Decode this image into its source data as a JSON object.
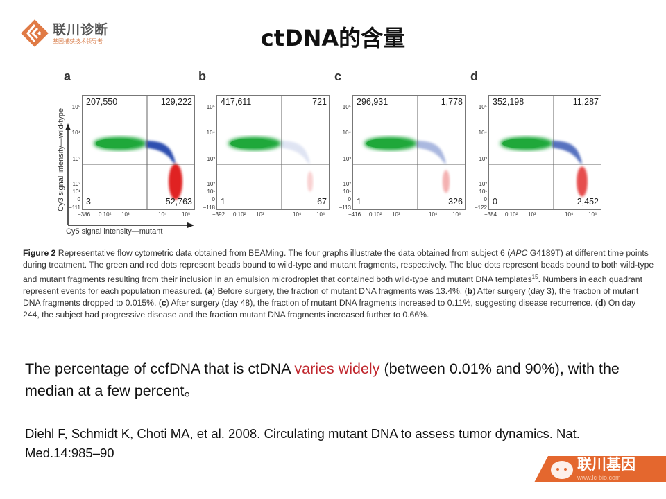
{
  "logo": {
    "name": "联川诊断",
    "tagline": "基因捕获技术领导者"
  },
  "title": "ctDNA的含量",
  "figure": {
    "y_axis_label": "Cy3 signal intensity—wild-type",
    "x_axis_label": "Cy5 signal intensity—mutant",
    "panels": [
      {
        "label": "a",
        "counts": {
          "top_left": "207,550",
          "top_right": "129,222",
          "bottom_left": "3",
          "bottom_right": "52,763"
        },
        "y_ticks": [
          "10⁵",
          "10⁴",
          "10³",
          "10²",
          "10¹",
          "0",
          "−111"
        ],
        "x_ticks": [
          "−386",
          "0 10²",
          "10³",
          "10⁴",
          "10⁵"
        ],
        "blue_density": 1.0,
        "red_density": 1.0
      },
      {
        "label": "b",
        "counts": {
          "top_left": "417,611",
          "top_right": "721",
          "bottom_left": "1",
          "bottom_right": "67"
        },
        "y_ticks": [
          "10⁵",
          "10⁴",
          "10³",
          "10²",
          "10¹",
          "0",
          "−118"
        ],
        "x_ticks": [
          "−392",
          "0 10²",
          "10³",
          "10⁴",
          "10⁵"
        ],
        "blue_density": 0.15,
        "red_density": 0.05
      },
      {
        "label": "c",
        "counts": {
          "top_left": "296,931",
          "top_right": "1,778",
          "bottom_left": "1",
          "bottom_right": "326"
        },
        "y_ticks": [
          "10⁵",
          "10⁴",
          "10³",
          "10²",
          "10¹",
          "0",
          "−113"
        ],
        "x_ticks": [
          "−416",
          "0 10²",
          "10³",
          "10⁴",
          "10⁵"
        ],
        "blue_density": 0.4,
        "red_density": 0.2
      },
      {
        "label": "d",
        "counts": {
          "top_left": "352,198",
          "top_right": "11,287",
          "bottom_left": "0",
          "bottom_right": "2,452"
        },
        "y_ticks": [
          "10⁵",
          "10⁴",
          "10³",
          "10²",
          "10¹",
          "0",
          "−122"
        ],
        "x_ticks": [
          "−384",
          "0 10²",
          "10³",
          "10⁴",
          "10⁵"
        ],
        "blue_density": 0.8,
        "red_density": 0.65
      }
    ],
    "colors": {
      "wild_type": "#1fa83a",
      "both": "#2e4fb0",
      "mutant": "#e02020"
    },
    "caption": {
      "figure_label": "Figure 2",
      "text_1": "  Representative flow cytometric data obtained from BEAMing. The four graphs illustrate the data obtained from subject 6 (",
      "gene": "APC",
      "text_2": " G4189T) at different time points during treatment. The green and red dots represent beads bound to wild-type and mutant fragments, respectively. The blue dots represent beads bound to both wild-type and mutant fragments resulting from their inclusion in an emulsion microdroplet that contained both wild-type and mutant DNA templates",
      "ref": "15",
      "text_3": ". Numbers in each quadrant represent events for each population measured. (",
      "a": "a",
      "text_4": ") Before surgery, the fraction of mutant DNA fragments was 13.4%. (",
      "b": "b",
      "text_5": ") After surgery (day 3), the fraction of mutant DNA fragments dropped to 0.015%. (",
      "c": "c",
      "text_6": ") After surgery (day 48), the fraction of mutant DNA fragments increased to 0.11%, suggesting disease recurrence. (",
      "d": "d",
      "text_7": ") On day 244, the subject had progressive disease and the fraction mutant DNA fragments increased further to 0.66%."
    }
  },
  "main_text": {
    "before": "The percentage of ccfDNA that is ctDNA ",
    "highlight": "varies widely",
    "after": " (between 0.01% and 90%), with the median at a few percent。"
  },
  "citation": "Diehl F, Schmidt K, Choti MA, et al. 2008. Circulating mutant DNA to assess tumor dynamics. Nat. Med.14:985–90",
  "watermark": {
    "brand": "联川基因",
    "site": "www.lc-bio.com"
  }
}
